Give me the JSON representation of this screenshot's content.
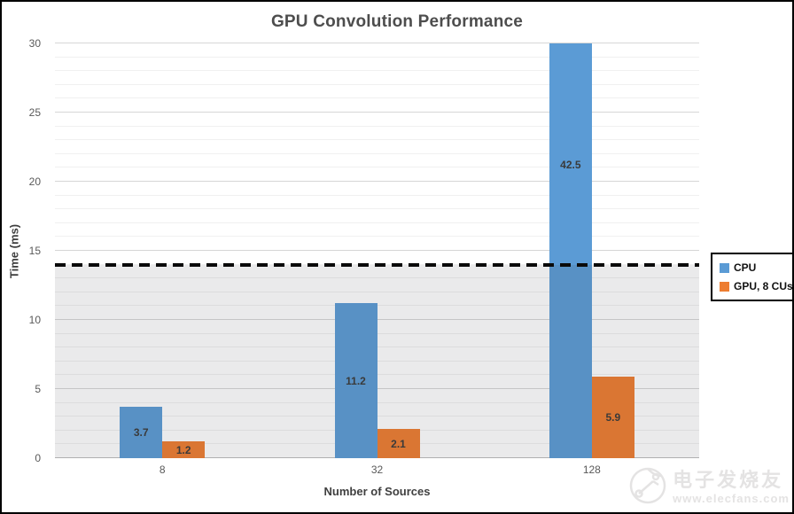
{
  "chart_data": {
    "type": "bar",
    "title": "GPU Convolution Performance",
    "xlabel": "Number of Sources",
    "ylabel": "Time (ms)",
    "categories": [
      "8",
      "32",
      "128"
    ],
    "series": [
      {
        "name": "CPU",
        "color": "#5B9BD5",
        "values": [
          3.7,
          11.2,
          42.5
        ]
      },
      {
        "name": "GPU, 8 CUs",
        "color": "#ED7D31",
        "values": [
          1.2,
          2.1,
          5.9
        ]
      }
    ],
    "ylim": [
      0,
      30
    ],
    "ytick_step": 5,
    "minor_grid_step": 1,
    "grid": true,
    "bars_clipped_at_ymax": [
      "CPU @ 128 (42.5)"
    ],
    "reference_line": {
      "value": 14,
      "style": "dashed",
      "color": "#000000",
      "shaded_below": true
    },
    "legend_position": "right",
    "value_labels": [
      "3.7",
      "1.2",
      "11.2",
      "2.1",
      "42.5",
      "5.9"
    ]
  },
  "watermark": {
    "cn": "电子发烧友",
    "url": "www.elecfans.com",
    "logo": "elecfans-circle-logo"
  }
}
